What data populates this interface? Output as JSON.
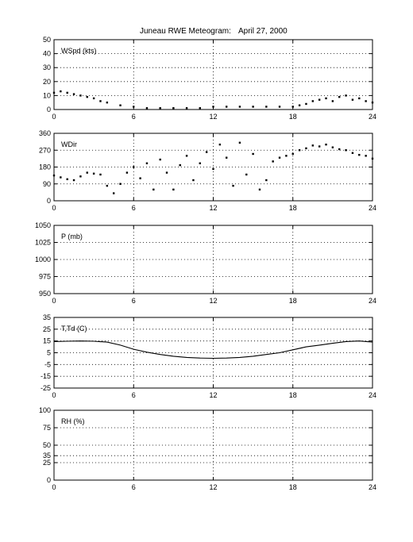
{
  "title": "Juneau RWE Meteogram:",
  "date": "April 27, 2000",
  "chart_data": [
    {
      "type": "scatter",
      "label": "WSpd (kts)",
      "xlim": [
        0,
        24
      ],
      "xticks": [
        0,
        6,
        12,
        18,
        24
      ],
      "ylim": [
        0,
        50
      ],
      "yticks": [
        0,
        10,
        20,
        30,
        40,
        50
      ],
      "grid": true,
      "x": [
        0,
        0.5,
        1,
        1.5,
        2,
        2.5,
        3,
        3.5,
        4,
        5,
        6,
        7,
        8,
        9,
        10,
        11,
        12,
        13,
        14,
        15,
        16,
        17,
        18,
        18.5,
        19,
        19.5,
        20,
        20.5,
        21,
        21.5,
        22,
        22.5,
        23,
        23.5,
        24
      ],
      "values": [
        12,
        13,
        12,
        11,
        10,
        9,
        8,
        6,
        5,
        3,
        2,
        1,
        1,
        1,
        1,
        1,
        2,
        2,
        2,
        2,
        2,
        2,
        2,
        3,
        4,
        6,
        7,
        8,
        6,
        9,
        10,
        7,
        8,
        6,
        5
      ]
    },
    {
      "type": "scatter",
      "label": "WDir",
      "xlim": [
        0,
        24
      ],
      "xticks": [
        0,
        6,
        12,
        18,
        24
      ],
      "ylim": [
        0,
        360
      ],
      "yticks": [
        0,
        90,
        180,
        270,
        360
      ],
      "grid": true,
      "x": [
        0,
        0.5,
        1,
        1.5,
        2,
        2.5,
        3,
        3.5,
        4,
        4.5,
        5,
        5.5,
        6,
        6.5,
        7,
        7.5,
        8,
        8.5,
        9,
        9.5,
        10,
        10.5,
        11,
        11.5,
        12,
        12.5,
        13,
        13.5,
        14,
        14.5,
        15,
        15.5,
        16,
        16.5,
        17,
        17.5,
        18,
        18.5,
        19,
        19.5,
        20,
        20.5,
        21,
        21.5,
        22,
        22.5,
        23,
        23.5,
        24
      ],
      "values": [
        135,
        125,
        115,
        110,
        130,
        150,
        145,
        140,
        80,
        40,
        90,
        150,
        180,
        120,
        200,
        60,
        220,
        150,
        60,
        190,
        240,
        110,
        200,
        260,
        170,
        300,
        230,
        80,
        310,
        140,
        250,
        60,
        110,
        210,
        230,
        240,
        250,
        270,
        280,
        295,
        290,
        300,
        285,
        275,
        270,
        255,
        245,
        240,
        225
      ]
    },
    {
      "type": "line",
      "label": "P (mb)",
      "xlim": [
        0,
        24
      ],
      "xticks": [
        0,
        6,
        12,
        18,
        24
      ],
      "ylim": [
        950,
        1050
      ],
      "yticks": [
        950,
        975,
        1000,
        1025,
        1050
      ],
      "grid": true,
      "x": [],
      "values": []
    },
    {
      "type": "line",
      "label": "T,Td (C)",
      "xlim": [
        0,
        24
      ],
      "xticks": [
        0,
        6,
        12,
        18,
        24
      ],
      "ylim": [
        -25,
        35
      ],
      "yticks": [
        -25,
        -15,
        -5,
        5,
        15,
        25,
        35
      ],
      "grid": true,
      "x": [
        0,
        1,
        2,
        3,
        4,
        5,
        6,
        7,
        8,
        9,
        10,
        11,
        12,
        13,
        14,
        15,
        16,
        17,
        18,
        19,
        20,
        21,
        22,
        23,
        24
      ],
      "values": [
        14.5,
        14.8,
        15,
        14.8,
        14,
        11.5,
        8,
        5.5,
        3.5,
        2,
        1,
        0.5,
        0.3,
        0.5,
        1,
        2,
        3.5,
        5,
        7.5,
        10,
        11.5,
        13,
        14.5,
        15,
        14
      ]
    },
    {
      "type": "line",
      "label": "RH (%)",
      "xlim": [
        0,
        24
      ],
      "xticks": [
        0,
        6,
        12,
        18,
        24
      ],
      "ylim": [
        0,
        100
      ],
      "yticks": [
        0,
        25,
        35,
        50,
        75,
        100
      ],
      "grid": true,
      "x": [],
      "values": []
    }
  ]
}
